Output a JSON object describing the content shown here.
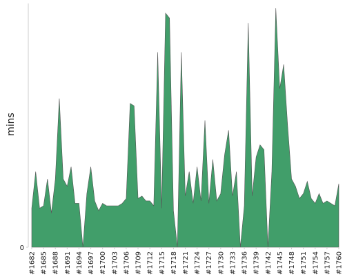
{
  "chart_data": {
    "type": "area",
    "ylabel": "mins",
    "categories": [
      "#1682",
      null,
      null,
      "#1685",
      null,
      null,
      "#1688",
      null,
      null,
      "#1691",
      null,
      null,
      "#1694",
      null,
      null,
      "#1697",
      null,
      null,
      "#1700",
      null,
      null,
      "#1703",
      null,
      null,
      "#1706",
      null,
      null,
      "#1709",
      null,
      null,
      "#1712",
      null,
      null,
      "#1715",
      null,
      null,
      "#1718",
      null,
      null,
      "#1721",
      null,
      null,
      "#1724",
      null,
      null,
      "#1727",
      null,
      null,
      "#1730",
      null,
      null,
      "#1733",
      null,
      null,
      "#1736",
      null,
      null,
      "#1739",
      null,
      null,
      "#1742",
      null,
      null,
      "#1745",
      null,
      null,
      "#1748",
      null,
      null,
      "#1751",
      null,
      null,
      "#1754",
      null,
      null,
      "#1757",
      null,
      null,
      "#1760"
    ],
    "values": [
      16,
      31,
      16,
      17,
      28,
      14,
      28,
      61,
      28,
      25,
      33,
      18,
      18,
      0,
      22,
      33,
      19,
      15,
      18,
      17,
      17,
      17,
      17,
      18,
      20,
      59,
      58,
      20,
      21,
      19,
      19,
      17,
      80,
      16,
      96,
      94,
      15,
      0,
      80,
      21,
      31,
      18,
      33,
      19,
      52,
      18,
      36,
      19,
      22,
      38,
      48,
      21,
      31,
      0,
      17,
      92,
      21,
      37,
      42,
      40,
      0,
      31,
      98,
      65,
      75,
      50,
      28,
      25,
      20,
      22,
      27,
      20,
      18,
      22,
      18,
      19,
      18,
      17,
      26
    ],
    "color": "#419e6a",
    "ylim": [
      0,
      100
    ],
    "yticks": [
      0
    ]
  }
}
